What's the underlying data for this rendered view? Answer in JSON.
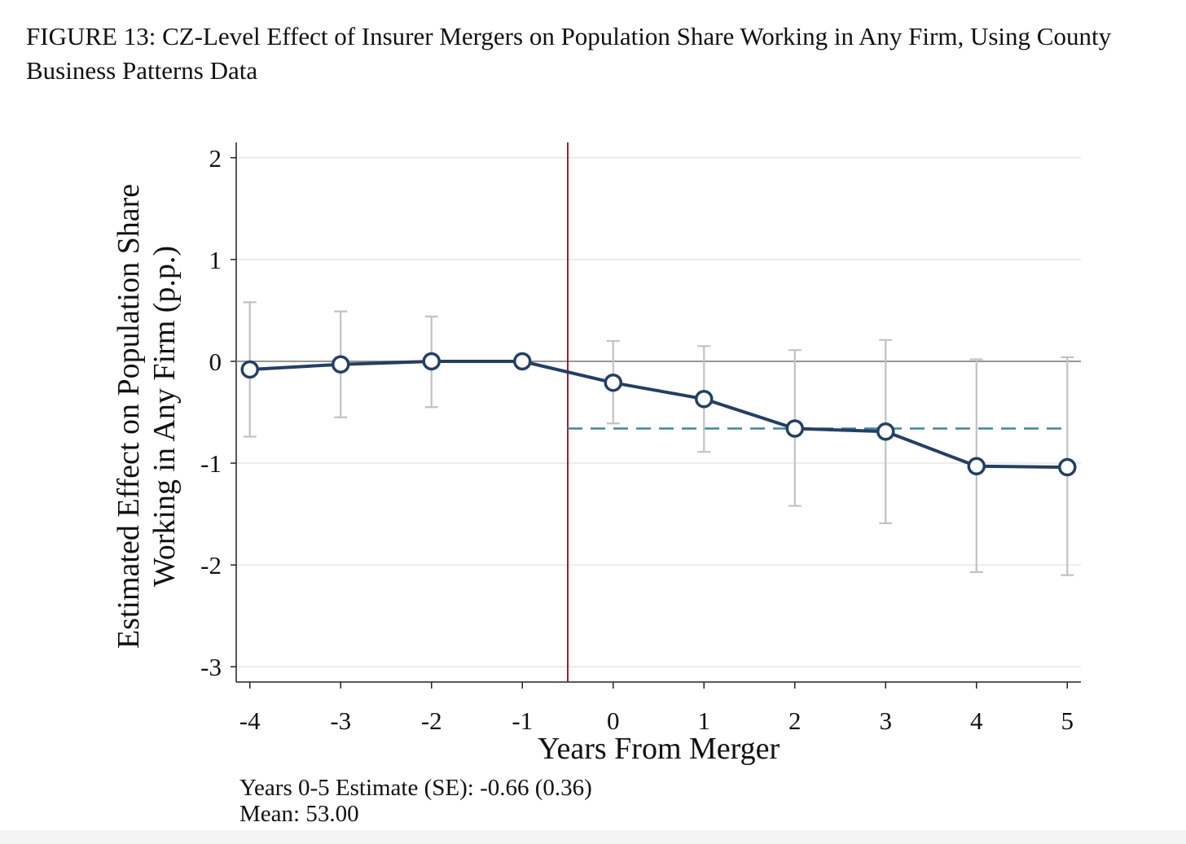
{
  "figure": {
    "title": "FIGURE 13: CZ-Level Effect of Insurer Mergers on Population Share Working in Any Firm, Using County Business Patterns Data",
    "notes": {
      "estimate": "Years 0-5 Estimate (SE): -0.66 (0.36)",
      "mean": "Mean: 53.00"
    }
  },
  "chart_data": {
    "type": "line",
    "xlabel": "Years From Merger",
    "ylabel_lines": [
      "Estimated Effect on Population Share",
      "Working in Any Firm (p.p.)"
    ],
    "x": [
      -4,
      -3,
      -2,
      -1,
      0,
      1,
      2,
      3,
      4,
      5
    ],
    "xticks": [
      "-4",
      "-3",
      "-2",
      "-1",
      "0",
      "1",
      "2",
      "3",
      "4",
      "5"
    ],
    "yticks": [
      "-3",
      "-2",
      "-1",
      "0",
      "1",
      "2"
    ],
    "ylim": [
      -3.15,
      2.15
    ],
    "xlim": [
      -4.15,
      5.15
    ],
    "grid": "horizontal",
    "series": [
      {
        "values": [
          -0.08,
          -0.03,
          0.0,
          0.0,
          -0.21,
          -0.37,
          -0.66,
          -0.69,
          -1.03,
          -1.04
        ],
        "ci_low": [
          -0.74,
          -0.55,
          -0.45,
          0.0,
          -0.61,
          -0.89,
          -1.42,
          -1.59,
          -2.07,
          -2.1
        ],
        "ci_high": [
          0.58,
          0.49,
          0.44,
          0.0,
          0.2,
          0.15,
          0.11,
          0.21,
          0.02,
          0.04
        ],
        "color": "#243f63",
        "ci_color": "#c2c2c2"
      }
    ],
    "event_line": {
      "x": -0.5,
      "color": "#b0162a"
    },
    "zero_line": {
      "y": 0,
      "color": "#8f8f8f"
    },
    "pooled_estimate": {
      "x_from": -0.5,
      "x_to": 5,
      "y": -0.66,
      "color": "#3e86a0"
    }
  }
}
